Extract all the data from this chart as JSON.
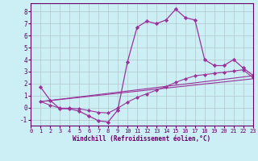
{
  "xlabel": "Windchill (Refroidissement éolien,°C)",
  "bg_color": "#cceef5",
  "line_color": "#993399",
  "grid_color": "#b0c8cc",
  "xlim": [
    0,
    23
  ],
  "ylim": [
    -1.5,
    8.7
  ],
  "yticks": [
    -1,
    0,
    1,
    2,
    3,
    4,
    5,
    6,
    7,
    8
  ],
  "xticks": [
    0,
    1,
    2,
    3,
    4,
    5,
    6,
    7,
    8,
    9,
    10,
    11,
    12,
    13,
    14,
    15,
    16,
    17,
    18,
    19,
    20,
    21,
    22,
    23
  ],
  "line1_x": [
    1,
    2,
    3,
    4,
    5,
    6,
    7,
    8,
    9,
    10,
    11,
    12,
    13,
    14,
    15,
    16,
    17,
    18,
    19,
    20,
    21,
    22,
    23
  ],
  "line1_y": [
    1.7,
    0.6,
    -0.1,
    -0.1,
    -0.3,
    -0.7,
    -1.1,
    -1.2,
    -0.2,
    3.8,
    6.7,
    7.2,
    7.0,
    7.3,
    8.2,
    7.5,
    7.3,
    4.0,
    3.5,
    3.5,
    4.0,
    3.3,
    2.7
  ],
  "line2_x": [
    1,
    2,
    3,
    4,
    5,
    6,
    7,
    8,
    9,
    10,
    11,
    12,
    13,
    14,
    15,
    16,
    17,
    18,
    19,
    20,
    21,
    22,
    23
  ],
  "line2_y": [
    0.5,
    0.2,
    -0.05,
    -0.05,
    -0.1,
    -0.25,
    -0.4,
    -0.45,
    -0.05,
    0.45,
    0.85,
    1.15,
    1.45,
    1.75,
    2.1,
    2.4,
    2.65,
    2.75,
    2.85,
    2.95,
    3.05,
    3.15,
    2.5
  ],
  "line3_x": [
    1,
    23
  ],
  "line3_y": [
    0.5,
    2.65
  ],
  "line4_x": [
    1,
    23
  ],
  "line4_y": [
    0.5,
    2.4
  ]
}
